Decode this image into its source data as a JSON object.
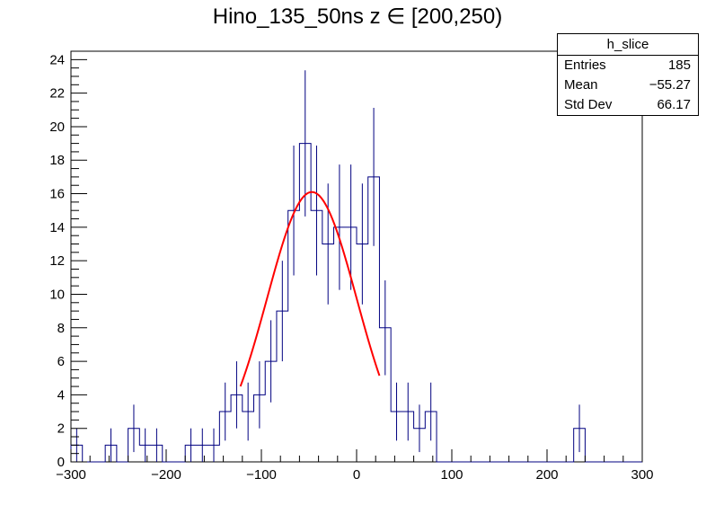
{
  "chart_data": {
    "type": "histogram",
    "title": "Hino_135_50ns z  ∈ [200,250)",
    "xlabel": "",
    "ylabel": "",
    "xlim": [
      -300,
      300
    ],
    "ylim": [
      0,
      24.5
    ],
    "bin_width": 12,
    "x_ticks": [
      -300,
      -200,
      -100,
      0,
      100,
      200,
      300
    ],
    "x_tick_labels": [
      "−300",
      "−200",
      "−100",
      "0",
      "100",
      "200",
      "300"
    ],
    "y_ticks": [
      0,
      2,
      4,
      6,
      8,
      10,
      12,
      14,
      16,
      18,
      20,
      22,
      24
    ],
    "y_tick_labels": [
      "0",
      "2",
      "4",
      "6",
      "8",
      "10",
      "12",
      "14",
      "16",
      "18",
      "20",
      "22",
      "24"
    ],
    "bin_counts": [
      1,
      0,
      0,
      1,
      0,
      2,
      1,
      1,
      0,
      0,
      1,
      1,
      1,
      3,
      4,
      3,
      4,
      6,
      9,
      15,
      19,
      15,
      13,
      14,
      14,
      13,
      17,
      8,
      3,
      3,
      2,
      3,
      0,
      0,
      0,
      0,
      0,
      0,
      0,
      0,
      0,
      0,
      0,
      0,
      2,
      0,
      0,
      0,
      0,
      0
    ],
    "histogram_color": "#000080",
    "fit": {
      "type": "gaussian",
      "amplitude": 16.1,
      "mean": -47,
      "sigma": 47,
      "range": [
        -122,
        24
      ],
      "color": "#ff0000"
    },
    "grid": false
  },
  "stats": {
    "title": "h_slice",
    "rows": [
      {
        "label": "Entries",
        "value": "185"
      },
      {
        "label": "Mean",
        "value": "−55.27"
      },
      {
        "label": "Std Dev",
        "value": "66.17"
      }
    ]
  }
}
